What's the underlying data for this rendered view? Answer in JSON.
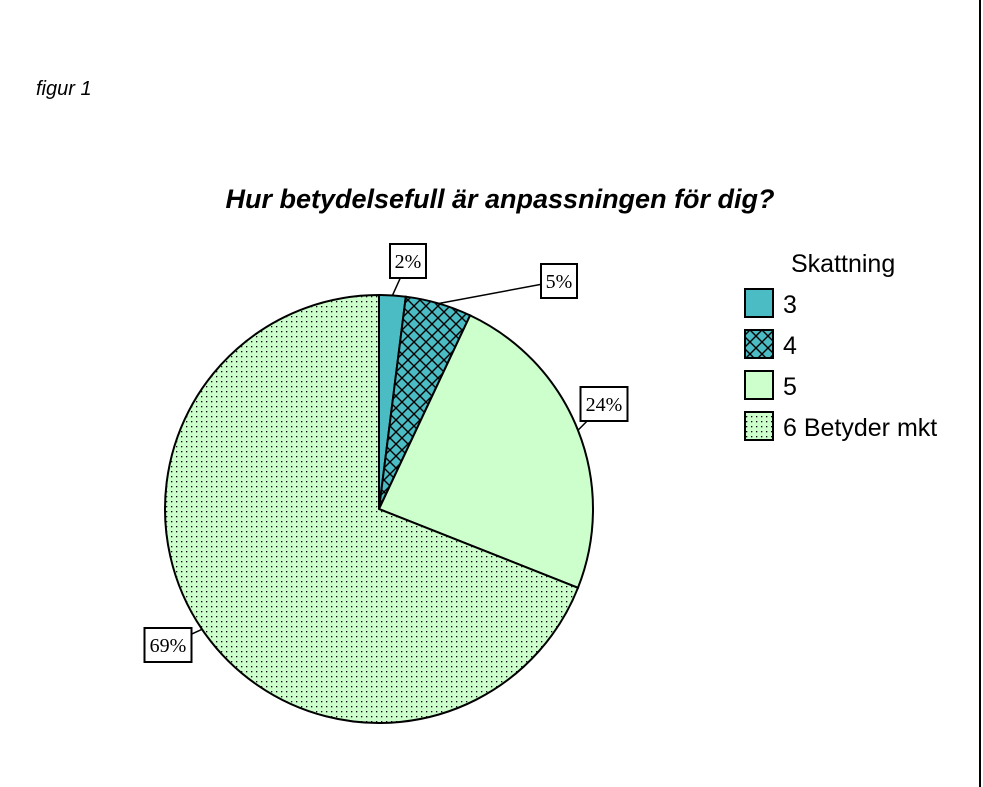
{
  "figure": {
    "caption": "figur 1"
  },
  "chart_data": {
    "type": "pie",
    "title": "Hur betydelsefull är anpassningen för dig?",
    "legend_title": "Skattning",
    "legend_position": "right",
    "categories": [
      "3",
      "4",
      "5",
      "6 Betyder mkt"
    ],
    "values": [
      2,
      5,
      24,
      69
    ],
    "labels": [
      "2%",
      "5%",
      "24%",
      "69%"
    ],
    "colors": [
      "#4bbcc4",
      "#4bbcc4",
      "#ccffcc",
      "#ccffcc"
    ],
    "patterns": [
      "solid",
      "crosshatch",
      "solid",
      "dots"
    ]
  }
}
